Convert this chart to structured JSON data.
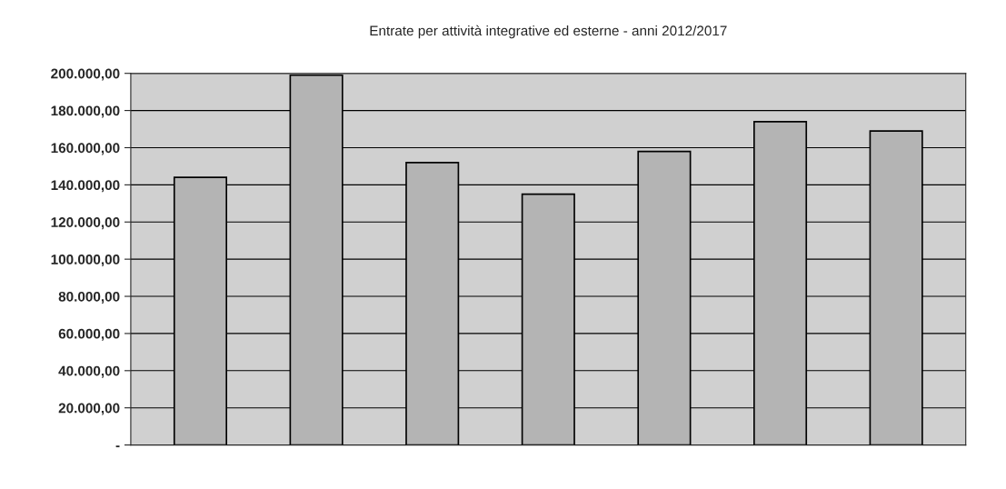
{
  "chart_data": {
    "type": "bar",
    "title": "Entrate per attività integrative ed esterne - anni 2012/2017",
    "categories": [
      null,
      null,
      null,
      null,
      null,
      null,
      null
    ],
    "values": [
      144000,
      199000,
      152000,
      135000,
      158000,
      174000,
      169000
    ],
    "color": "#b4b4b4",
    "ylim": [
      0,
      200000
    ],
    "yticks": [
      {
        "value": 0,
        "label": "-"
      },
      {
        "value": 20000,
        "label": "20.000,00"
      },
      {
        "value": 40000,
        "label": "40.000,00"
      },
      {
        "value": 60000,
        "label": "60.000,00"
      },
      {
        "value": 80000,
        "label": "80.000,00"
      },
      {
        "value": 100000,
        "label": "100.000,00"
      },
      {
        "value": 120000,
        "label": "120.000,00"
      },
      {
        "value": 140000,
        "label": "140.000,00"
      },
      {
        "value": 160000,
        "label": "160.000,00"
      },
      {
        "value": 180000,
        "label": "180.000,00"
      },
      {
        "value": 200000,
        "label": "200.000,00"
      }
    ],
    "grid": "y"
  }
}
